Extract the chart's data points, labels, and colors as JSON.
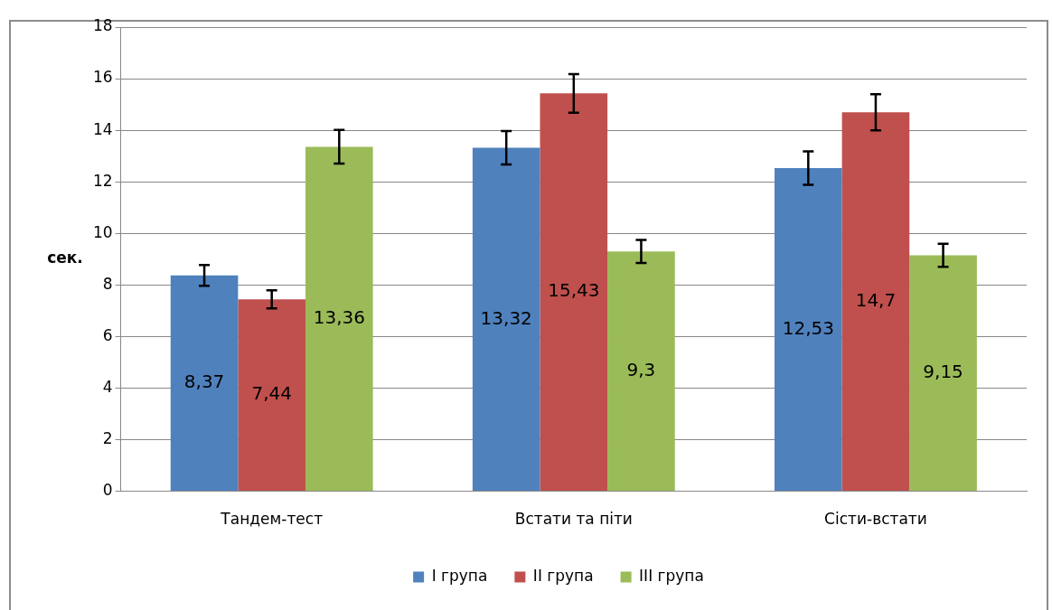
{
  "chart_data": {
    "type": "bar",
    "ylabel": "сек.",
    "categories": [
      "Тандем-тест",
      "Встати та піти",
      "Сісти-встати"
    ],
    "series": [
      {
        "name": "І група",
        "color": "#4f81bd",
        "values": [
          8.37,
          13.32,
          12.53
        ],
        "errors": [
          0.4,
          0.65,
          0.65
        ],
        "value_labels": [
          "8,37",
          "13,32",
          "12,53"
        ]
      },
      {
        "name": "ІІ група",
        "color": "#c0504d",
        "values": [
          7.44,
          15.43,
          14.7
        ],
        "errors": [
          0.35,
          0.75,
          0.7
        ],
        "value_labels": [
          "7,44",
          "15,43",
          "14,7"
        ]
      },
      {
        "name": "ІІІ група",
        "color": "#9bbb59",
        "values": [
          13.36,
          9.3,
          9.15
        ],
        "errors": [
          0.65,
          0.45,
          0.45
        ],
        "value_labels": [
          "13,36",
          "9,3",
          "9,15"
        ]
      }
    ],
    "ylim": [
      0,
      18
    ],
    "yticks": [
      0,
      2,
      4,
      6,
      8,
      10,
      12,
      14,
      16,
      18
    ],
    "grid": "y",
    "legend": "bottom"
  }
}
